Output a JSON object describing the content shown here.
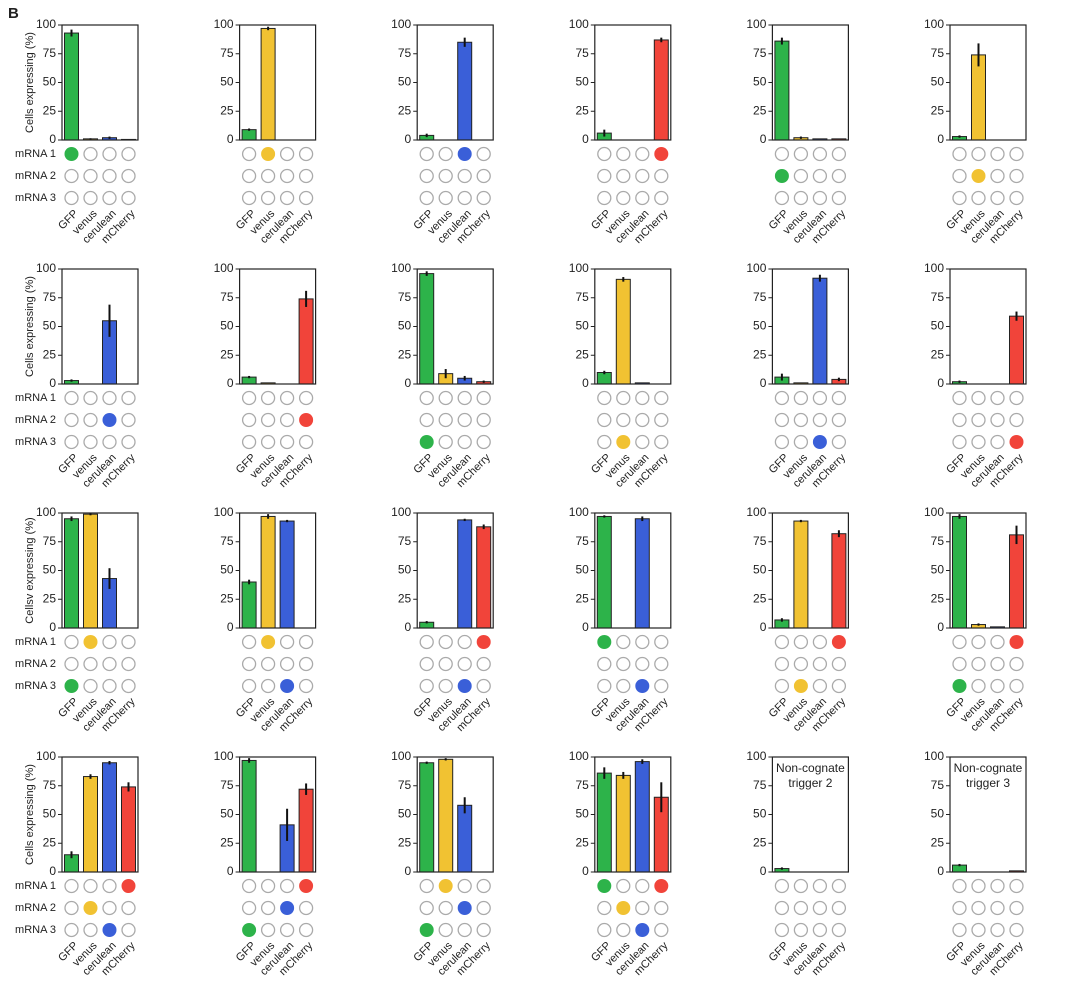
{
  "panel_label": "B",
  "chart_data": [
    {
      "type": "bar",
      "ylabel": "Cells expressing (%)",
      "dot_row_labels": [
        "mRNA 1",
        "mRNA 2",
        "mRNA 3"
      ],
      "categories": [
        "GFP",
        "venus",
        "cerulean",
        "mCherry"
      ],
      "colors": [
        "#2db34a",
        "#f1c232",
        "#3a5fd8",
        "#f1443a"
      ],
      "values": [
        93,
        1,
        2,
        0.5
      ],
      "errors": [
        3,
        0.5,
        1,
        0
      ],
      "dots": [
        [
          1,
          0,
          0,
          0
        ],
        [
          0,
          0,
          0,
          0
        ],
        [
          0,
          0,
          0,
          0
        ]
      ],
      "ylim": [
        0,
        100
      ],
      "yticks": [
        0,
        25,
        50,
        75,
        100
      ]
    },
    {
      "type": "bar",
      "categories": [
        "GFP",
        "venus",
        "cerulean",
        "mCherry"
      ],
      "colors": [
        "#2db34a",
        "#f1c232",
        "#3a5fd8",
        "#f1443a"
      ],
      "values": [
        9,
        97,
        0,
        0
      ],
      "errors": [
        1,
        1.5,
        0,
        0
      ],
      "dots": [
        [
          0,
          1,
          0,
          0
        ],
        [
          0,
          0,
          0,
          0
        ],
        [
          0,
          0,
          0,
          0
        ]
      ],
      "ylim": [
        0,
        100
      ],
      "yticks": [
        0,
        25,
        50,
        75,
        100
      ]
    },
    {
      "type": "bar",
      "categories": [
        "GFP",
        "venus",
        "cerulean",
        "mCherry"
      ],
      "colors": [
        "#2db34a",
        "#f1c232",
        "#3a5fd8",
        "#f1443a"
      ],
      "values": [
        4,
        0,
        85,
        0
      ],
      "errors": [
        1.5,
        0,
        4,
        0
      ],
      "dots": [
        [
          0,
          0,
          1,
          0
        ],
        [
          0,
          0,
          0,
          0
        ],
        [
          0,
          0,
          0,
          0
        ]
      ],
      "ylim": [
        0,
        100
      ],
      "yticks": [
        0,
        25,
        50,
        75,
        100
      ]
    },
    {
      "type": "bar",
      "categories": [
        "GFP",
        "venus",
        "cerulean",
        "mCherry"
      ],
      "colors": [
        "#2db34a",
        "#f1c232",
        "#3a5fd8",
        "#f1443a"
      ],
      "values": [
        6,
        0,
        0,
        87
      ],
      "errors": [
        3,
        0,
        0,
        2
      ],
      "dots": [
        [
          0,
          0,
          0,
          1
        ],
        [
          0,
          0,
          0,
          0
        ],
        [
          0,
          0,
          0,
          0
        ]
      ],
      "ylim": [
        0,
        100
      ],
      "yticks": [
        0,
        25,
        50,
        75,
        100
      ]
    },
    {
      "type": "bar",
      "categories": [
        "GFP",
        "venus",
        "cerulean",
        "mCherry"
      ],
      "colors": [
        "#2db34a",
        "#f1c232",
        "#3a5fd8",
        "#f1443a"
      ],
      "values": [
        86,
        2,
        1,
        1
      ],
      "errors": [
        3,
        1,
        0,
        0
      ],
      "dots": [
        [
          0,
          0,
          0,
          0
        ],
        [
          1,
          0,
          0,
          0
        ],
        [
          0,
          0,
          0,
          0
        ]
      ],
      "ylim": [
        0,
        100
      ],
      "yticks": [
        0,
        25,
        50,
        75,
        100
      ]
    },
    {
      "type": "bar",
      "categories": [
        "GFP",
        "venus",
        "cerulean",
        "mCherry"
      ],
      "colors": [
        "#2db34a",
        "#f1c232",
        "#3a5fd8",
        "#f1443a"
      ],
      "values": [
        3,
        74,
        0,
        0
      ],
      "errors": [
        1,
        10,
        0,
        0
      ],
      "dots": [
        [
          0,
          0,
          0,
          0
        ],
        [
          0,
          1,
          0,
          0
        ],
        [
          0,
          0,
          0,
          0
        ]
      ],
      "ylim": [
        0,
        100
      ],
      "yticks": [
        0,
        25,
        50,
        75,
        100
      ]
    },
    {
      "type": "bar",
      "ylabel": "Cells expressing (%)",
      "dot_row_labels": [
        "mRNA 1",
        "mRNA 2",
        "mRNA 3"
      ],
      "categories": [
        "GFP",
        "venus",
        "cerulean",
        "mCherry"
      ],
      "colors": [
        "#2db34a",
        "#f1c232",
        "#3a5fd8",
        "#f1443a"
      ],
      "values": [
        3,
        0,
        55,
        0
      ],
      "errors": [
        1,
        0,
        14,
        0
      ],
      "dots": [
        [
          0,
          0,
          0,
          0
        ],
        [
          0,
          0,
          1,
          0
        ],
        [
          0,
          0,
          0,
          0
        ]
      ],
      "ylim": [
        0,
        100
      ],
      "yticks": [
        0,
        25,
        50,
        75,
        100
      ]
    },
    {
      "type": "bar",
      "categories": [
        "GFP",
        "venus",
        "cerulean",
        "mCherry"
      ],
      "colors": [
        "#2db34a",
        "#f1c232",
        "#3a5fd8",
        "#f1443a"
      ],
      "values": [
        6,
        1,
        0,
        74
      ],
      "errors": [
        1,
        0,
        0,
        7
      ],
      "dots": [
        [
          0,
          0,
          0,
          0
        ],
        [
          0,
          0,
          0,
          1
        ],
        [
          0,
          0,
          0,
          0
        ]
      ],
      "ylim": [
        0,
        100
      ],
      "yticks": [
        0,
        25,
        50,
        75,
        100
      ]
    },
    {
      "type": "bar",
      "categories": [
        "GFP",
        "venus",
        "cerulean",
        "mCherry"
      ],
      "colors": [
        "#2db34a",
        "#f1c232",
        "#3a5fd8",
        "#f1443a"
      ],
      "values": [
        96,
        9,
        5,
        2
      ],
      "errors": [
        2,
        4,
        2,
        1
      ],
      "dots": [
        [
          0,
          0,
          0,
          0
        ],
        [
          0,
          0,
          0,
          0
        ],
        [
          1,
          0,
          0,
          0
        ]
      ],
      "ylim": [
        0,
        100
      ],
      "yticks": [
        0,
        25,
        50,
        75,
        100
      ]
    },
    {
      "type": "bar",
      "categories": [
        "GFP",
        "venus",
        "cerulean",
        "mCherry"
      ],
      "colors": [
        "#2db34a",
        "#f1c232",
        "#3a5fd8",
        "#f1443a"
      ],
      "values": [
        10,
        91,
        1,
        0
      ],
      "errors": [
        1.5,
        2,
        0,
        0
      ],
      "dots": [
        [
          0,
          0,
          0,
          0
        ],
        [
          0,
          0,
          0,
          0
        ],
        [
          0,
          1,
          0,
          0
        ]
      ],
      "ylim": [
        0,
        100
      ],
      "yticks": [
        0,
        25,
        50,
        75,
        100
      ]
    },
    {
      "type": "bar",
      "categories": [
        "GFP",
        "venus",
        "cerulean",
        "mCherry"
      ],
      "colors": [
        "#2db34a",
        "#f1c232",
        "#3a5fd8",
        "#f1443a"
      ],
      "values": [
        6,
        1,
        92,
        4
      ],
      "errors": [
        3,
        0,
        3,
        1.5
      ],
      "dots": [
        [
          0,
          0,
          0,
          0
        ],
        [
          0,
          0,
          0,
          0
        ],
        [
          0,
          0,
          1,
          0
        ]
      ],
      "ylim": [
        0,
        100
      ],
      "yticks": [
        0,
        25,
        50,
        75,
        100
      ]
    },
    {
      "type": "bar",
      "categories": [
        "GFP",
        "venus",
        "cerulean",
        "mCherry"
      ],
      "colors": [
        "#2db34a",
        "#f1c232",
        "#3a5fd8",
        "#f1443a"
      ],
      "values": [
        2,
        0,
        0,
        59
      ],
      "errors": [
        1,
        0,
        0,
        4
      ],
      "dots": [
        [
          0,
          0,
          0,
          0
        ],
        [
          0,
          0,
          0,
          0
        ],
        [
          0,
          0,
          0,
          1
        ]
      ],
      "ylim": [
        0,
        100
      ],
      "yticks": [
        0,
        25,
        50,
        75,
        100
      ]
    },
    {
      "type": "bar",
      "ylabel": "Cellsv expressing (%)",
      "dot_row_labels": [
        "mRNA 1",
        "mRNA 2",
        "mRNA 3"
      ],
      "categories": [
        "GFP",
        "venus",
        "cerulean",
        "mCherry"
      ],
      "colors": [
        "#2db34a",
        "#f1c232",
        "#3a5fd8",
        "#f1443a"
      ],
      "values": [
        95,
        99,
        43,
        0
      ],
      "errors": [
        2,
        1,
        9,
        0
      ],
      "dots": [
        [
          0,
          1,
          0,
          0
        ],
        [
          0,
          0,
          0,
          0
        ],
        [
          1,
          0,
          0,
          0
        ]
      ],
      "ylim": [
        0,
        100
      ],
      "yticks": [
        0,
        25,
        50,
        75,
        100
      ]
    },
    {
      "type": "bar",
      "categories": [
        "GFP",
        "venus",
        "cerulean",
        "mCherry"
      ],
      "colors": [
        "#2db34a",
        "#f1c232",
        "#3a5fd8",
        "#f1443a"
      ],
      "values": [
        40,
        97,
        93,
        0
      ],
      "errors": [
        2,
        2,
        1,
        0
      ],
      "dots": [
        [
          0,
          1,
          0,
          0
        ],
        [
          0,
          0,
          0,
          0
        ],
        [
          0,
          0,
          1,
          0
        ]
      ],
      "ylim": [
        0,
        100
      ],
      "yticks": [
        0,
        25,
        50,
        75,
        100
      ]
    },
    {
      "type": "bar",
      "categories": [
        "GFP",
        "venus",
        "cerulean",
        "mCherry"
      ],
      "colors": [
        "#2db34a",
        "#f1c232",
        "#3a5fd8",
        "#f1443a"
      ],
      "values": [
        5,
        0,
        94,
        88
      ],
      "errors": [
        1,
        0,
        1,
        2
      ],
      "dots": [
        [
          0,
          0,
          0,
          1
        ],
        [
          0,
          0,
          0,
          0
        ],
        [
          0,
          0,
          1,
          0
        ]
      ],
      "ylim": [
        0,
        100
      ],
      "yticks": [
        0,
        25,
        50,
        75,
        100
      ]
    },
    {
      "type": "bar",
      "categories": [
        "GFP",
        "venus",
        "cerulean",
        "mCherry"
      ],
      "colors": [
        "#2db34a",
        "#f1c232",
        "#3a5fd8",
        "#f1443a"
      ],
      "values": [
        97,
        0,
        95,
        0
      ],
      "errors": [
        1,
        0,
        2,
        0
      ],
      "dots": [
        [
          1,
          0,
          0,
          0
        ],
        [
          0,
          0,
          0,
          0
        ],
        [
          0,
          0,
          1,
          0
        ]
      ],
      "ylim": [
        0,
        100
      ],
      "yticks": [
        0,
        25,
        50,
        75,
        100
      ]
    },
    {
      "type": "bar",
      "categories": [
        "GFP",
        "venus",
        "cerulean",
        "mCherry"
      ],
      "colors": [
        "#2db34a",
        "#f1c232",
        "#3a5fd8",
        "#f1443a"
      ],
      "values": [
        7,
        93,
        0,
        82
      ],
      "errors": [
        1.5,
        1,
        0,
        3
      ],
      "dots": [
        [
          0,
          0,
          0,
          1
        ],
        [
          0,
          0,
          0,
          0
        ],
        [
          0,
          1,
          0,
          0
        ]
      ],
      "ylim": [
        0,
        100
      ],
      "yticks": [
        0,
        25,
        50,
        75,
        100
      ]
    },
    {
      "type": "bar",
      "categories": [
        "GFP",
        "venus",
        "cerulean",
        "mCherry"
      ],
      "colors": [
        "#2db34a",
        "#f1c232",
        "#3a5fd8",
        "#f1443a"
      ],
      "values": [
        97,
        3,
        1,
        81
      ],
      "errors": [
        2,
        1,
        0,
        8
      ],
      "dots": [
        [
          0,
          0,
          0,
          1
        ],
        [
          0,
          0,
          0,
          0
        ],
        [
          1,
          0,
          0,
          0
        ]
      ],
      "ylim": [
        0,
        100
      ],
      "yticks": [
        0,
        25,
        50,
        75,
        100
      ]
    },
    {
      "type": "bar",
      "ylabel": "Cells expressing (%)",
      "dot_row_labels": [
        "mRNA 1",
        "mRNA 2",
        "mRNA 3"
      ],
      "categories": [
        "GFP",
        "venus",
        "cerulean",
        "mCherry"
      ],
      "colors": [
        "#2db34a",
        "#f1c232",
        "#3a5fd8",
        "#f1443a"
      ],
      "values": [
        15,
        83,
        95,
        74
      ],
      "errors": [
        3,
        2,
        1.5,
        4
      ],
      "dots": [
        [
          0,
          0,
          0,
          1
        ],
        [
          0,
          1,
          0,
          0
        ],
        [
          0,
          0,
          1,
          0
        ]
      ],
      "ylim": [
        0,
        100
      ],
      "yticks": [
        0,
        25,
        50,
        75,
        100
      ]
    },
    {
      "type": "bar",
      "categories": [
        "GFP",
        "venus",
        "cerulean",
        "mCherry"
      ],
      "colors": [
        "#2db34a",
        "#f1c232",
        "#3a5fd8",
        "#f1443a"
      ],
      "values": [
        97,
        0,
        41,
        72
      ],
      "errors": [
        2,
        0,
        14,
        5
      ],
      "dots": [
        [
          0,
          0,
          0,
          1
        ],
        [
          0,
          0,
          1,
          0
        ],
        [
          1,
          0,
          0,
          0
        ]
      ],
      "ylim": [
        0,
        100
      ],
      "yticks": [
        0,
        25,
        50,
        75,
        100
      ]
    },
    {
      "type": "bar",
      "categories": [
        "GFP",
        "venus",
        "cerulean",
        "mCherry"
      ],
      "colors": [
        "#2db34a",
        "#f1c232",
        "#3a5fd8",
        "#f1443a"
      ],
      "values": [
        95,
        98,
        58,
        0
      ],
      "errors": [
        1,
        1,
        7,
        0
      ],
      "dots": [
        [
          0,
          1,
          0,
          0
        ],
        [
          0,
          0,
          1,
          0
        ],
        [
          1,
          0,
          0,
          0
        ]
      ],
      "ylim": [
        0,
        100
      ],
      "yticks": [
        0,
        25,
        50,
        75,
        100
      ]
    },
    {
      "type": "bar",
      "categories": [
        "GFP",
        "venus",
        "cerulean",
        "mCherry"
      ],
      "colors": [
        "#2db34a",
        "#f1c232",
        "#3a5fd8",
        "#f1443a"
      ],
      "values": [
        86,
        84,
        96,
        65
      ],
      "errors": [
        5,
        3,
        2,
        13
      ],
      "dots": [
        [
          1,
          0,
          0,
          1
        ],
        [
          0,
          1,
          0,
          0
        ],
        [
          0,
          0,
          1,
          0
        ]
      ],
      "ylim": [
        0,
        100
      ],
      "yticks": [
        0,
        25,
        50,
        75,
        100
      ]
    },
    {
      "type": "bar",
      "annotation": [
        "Non-cognate",
        "trigger 2"
      ],
      "categories": [
        "GFP",
        "venus",
        "cerulean",
        "mCherry"
      ],
      "colors": [
        "#2db34a",
        "#f1c232",
        "#3a5fd8",
        "#f1443a"
      ],
      "values": [
        3,
        0,
        0,
        0
      ],
      "errors": [
        1,
        0,
        0,
        0
      ],
      "dots": [
        [
          0,
          0,
          0,
          0
        ],
        [
          0,
          0,
          0,
          0
        ],
        [
          0,
          0,
          0,
          0
        ]
      ],
      "ylim": [
        0,
        100
      ],
      "yticks": [
        0,
        25,
        50,
        75,
        100
      ]
    },
    {
      "type": "bar",
      "annotation": [
        "Non-cognate",
        "trigger 3"
      ],
      "categories": [
        "GFP",
        "venus",
        "cerulean",
        "mCherry"
      ],
      "colors": [
        "#2db34a",
        "#f1c232",
        "#3a5fd8",
        "#f1443a"
      ],
      "values": [
        6,
        0,
        0,
        1
      ],
      "errors": [
        1,
        0,
        0,
        0
      ],
      "dots": [
        [
          0,
          0,
          0,
          0
        ],
        [
          0,
          0,
          0,
          0
        ],
        [
          0,
          0,
          0,
          0
        ]
      ],
      "ylim": [
        0,
        100
      ],
      "yticks": [
        0,
        25,
        50,
        75,
        100
      ]
    }
  ]
}
